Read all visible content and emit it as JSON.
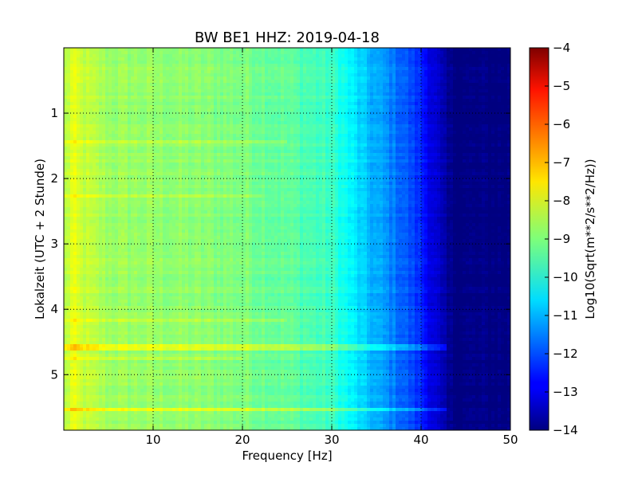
{
  "chart_data": {
    "type": "heatmap",
    "title": "BW BE1 HHZ: 2019-04-18",
    "xlabel": "Frequency [Hz]",
    "ylabel": "Lokalzeit (UTC + 2 Stunde)",
    "colorbar_label": "Log10(Sqrt(m**2/s**2/Hz))",
    "xlim": [
      0,
      50
    ],
    "ylim": [
      5.85,
      0
    ],
    "xticks": [
      10,
      20,
      30,
      40,
      50
    ],
    "yticks": [
      1,
      2,
      3,
      4,
      5
    ],
    "color_range": [
      -14,
      -4
    ],
    "colorbar_ticks": [
      -4,
      -5,
      -6,
      -7,
      -8,
      -9,
      -10,
      -11,
      -12,
      -13,
      -14
    ],
    "colormap": "jet",
    "grid": true,
    "spectrum_profile": {
      "frequency": [
        0,
        1,
        2,
        5,
        10,
        15,
        20,
        25,
        30,
        32,
        34,
        36,
        38,
        40,
        41,
        42,
        43,
        44,
        50
      ],
      "level": [
        -8.6,
        -8.0,
        -8.3,
        -8.7,
        -8.8,
        -8.9,
        -9.0,
        -9.3,
        -9.7,
        -10.3,
        -10.9,
        -11.3,
        -11.8,
        -12.4,
        -12.9,
        -13.4,
        -13.9,
        -14,
        -14
      ]
    },
    "bands": [
      {
        "time": 4.55,
        "f_start": 0,
        "f_end": 45,
        "delta": 0.8
      },
      {
        "time": 5.52,
        "f_start": 0,
        "f_end": 45,
        "delta": 0.8
      },
      {
        "time": 1.42,
        "f_start": 0,
        "f_end": 25,
        "delta": 0.4
      },
      {
        "time": 2.25,
        "f_start": 0,
        "f_end": 22,
        "delta": 0.35
      },
      {
        "time": 4.15,
        "f_start": 0,
        "f_end": 25,
        "delta": 0.3
      },
      {
        "time": 4.72,
        "f_start": 0,
        "f_end": 20,
        "delta": 0.35
      }
    ]
  }
}
